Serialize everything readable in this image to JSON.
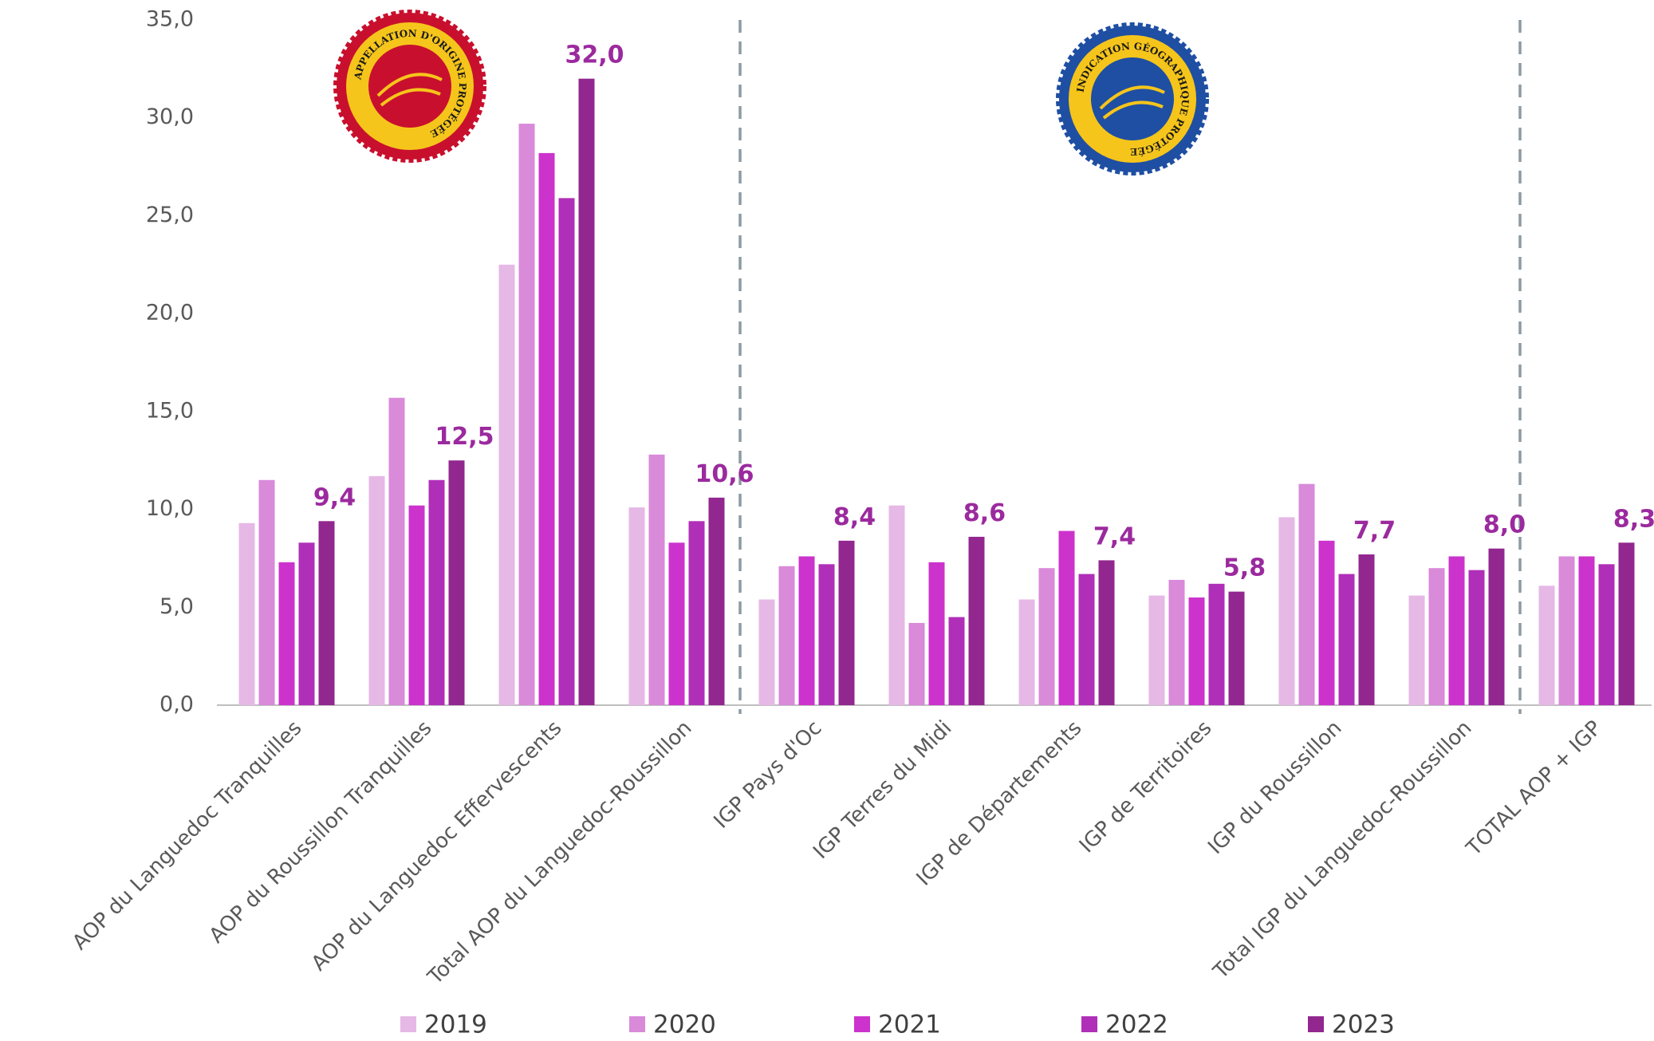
{
  "chart_data": {
    "type": "bar",
    "categories": [
      "AOP du Languedoc Tranquilles",
      "AOP du Roussillon Tranquilles",
      "AOP du Languedoc Effervescents",
      "Total AOP du Languedoc-Roussillon",
      "IGP Pays d'Oc",
      "IGP Terres du Midi",
      "IGP de Départements",
      "IGP de Territoires",
      "IGP du Roussillon",
      "Total IGP du Languedoc-Roussillon",
      "TOTAL AOP + IGP"
    ],
    "series": [
      {
        "name": "2019",
        "color": "#e6b8e6",
        "values": [
          9.3,
          11.7,
          22.5,
          10.1,
          5.4,
          10.2,
          5.4,
          5.6,
          9.6,
          5.6,
          6.1
        ]
      },
      {
        "name": "2020",
        "color": "#d98ad9",
        "values": [
          11.5,
          15.7,
          29.7,
          12.8,
          7.1,
          4.2,
          7.0,
          6.4,
          11.3,
          7.0,
          7.6
        ]
      },
      {
        "name": "2021",
        "color": "#cc33cc",
        "values": [
          7.3,
          10.2,
          28.2,
          8.3,
          7.6,
          7.3,
          8.9,
          5.5,
          8.4,
          7.6,
          7.6
        ]
      },
      {
        "name": "2022",
        "color": "#b02fb8",
        "values": [
          8.3,
          11.5,
          25.9,
          9.4,
          7.2,
          4.5,
          6.7,
          6.2,
          6.7,
          6.9,
          7.2
        ]
      },
      {
        "name": "2023",
        "color": "#92278f",
        "values": [
          9.4,
          12.5,
          32.0,
          10.6,
          8.4,
          8.6,
          7.4,
          5.8,
          7.7,
          8.0,
          8.3
        ],
        "value_labels": [
          "9,4",
          "12,5",
          "32,0",
          "10,6",
          "8,4",
          "8,6",
          "7,4",
          "5,8",
          "7,7",
          "8,0",
          "8,3"
        ]
      }
    ],
    "ylim": [
      0,
      35
    ],
    "yticks": [
      {
        "value": 0,
        "label": "0,0"
      },
      {
        "value": 5,
        "label": "5,0"
      },
      {
        "value": 10,
        "label": "10,0"
      },
      {
        "value": 15,
        "label": "15,0"
      },
      {
        "value": 20,
        "label": "20,0"
      },
      {
        "value": 25,
        "label": "25,0"
      },
      {
        "value": 30,
        "label": "30,0"
      },
      {
        "value": 35,
        "label": "35,0"
      }
    ],
    "grid": false,
    "legend": "bottom"
  },
  "logos": {
    "aop": "APPELLATION D'ORIGINE PROTÉGÉE",
    "igp": "INDICATION GÉOGRAPHIQUE PROTÉGÉE"
  }
}
